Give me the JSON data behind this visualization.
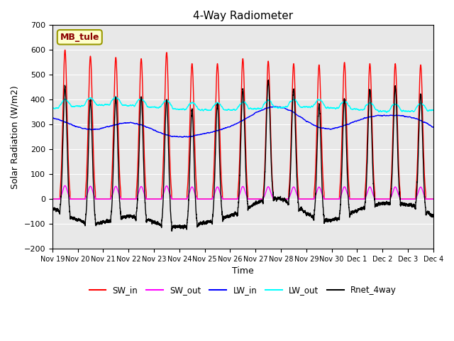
{
  "title": "4-Way Radiometer",
  "xlabel": "Time",
  "ylabel": "Solar Radiation (W/m2)",
  "ylim": [
    -200,
    700
  ],
  "yticks": [
    -200,
    -100,
    0,
    100,
    200,
    300,
    400,
    500,
    600,
    700
  ],
  "xtick_labels": [
    "Nov 19",
    "Nov 20",
    "Nov 21",
    "Nov 22",
    "Nov 23",
    "Nov 24",
    "Nov 25",
    "Nov 26",
    "Nov 27",
    "Nov 28",
    "Nov 29",
    "Nov 30",
    "Dec 1",
    "Dec 2",
    "Dec 3",
    "Dec 4"
  ],
  "station_label": "MB_tule",
  "series": {
    "SW_in": {
      "color": "#FF0000",
      "lw": 1.0
    },
    "SW_out": {
      "color": "#FF00FF",
      "lw": 1.0
    },
    "LW_in": {
      "color": "#0000FF",
      "lw": 1.0
    },
    "LW_out": {
      "color": "#00FFFF",
      "lw": 1.0
    },
    "Rnet_4way": {
      "color": "#000000",
      "lw": 1.0
    }
  },
  "plot_bg_color": "#E8E8E8",
  "figsize": [
    6.4,
    4.8
  ],
  "dpi": 100
}
